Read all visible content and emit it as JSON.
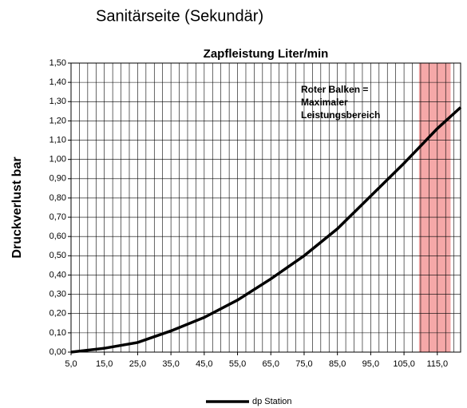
{
  "chart_data": {
    "type": "line",
    "header": "Sanitärseite (Sekundär)",
    "title": "Zapfleistung Liter/min",
    "ylabel": "Druckverlust bar",
    "annotation": [
      "Roter Balken =",
      "Maximaler",
      "Leistungsbereich"
    ],
    "highlight": {
      "from": 109.5,
      "to": 119,
      "color": "#f28b8b"
    },
    "x": [
      5,
      15,
      25,
      35,
      45,
      55,
      65,
      75,
      85,
      95,
      105,
      115,
      122
    ],
    "series": [
      {
        "name": "dp Station",
        "color": "#000000",
        "values": [
          0.0,
          0.02,
          0.05,
          0.11,
          0.18,
          0.27,
          0.38,
          0.5,
          0.64,
          0.81,
          0.98,
          1.16,
          1.27
        ]
      }
    ],
    "xlim": [
      5,
      122
    ],
    "xticks": [
      {
        "value": 5,
        "label": "5,0"
      },
      {
        "value": 15,
        "label": "15,0"
      },
      {
        "value": 25,
        "label": "25,0"
      },
      {
        "value": 35,
        "label": "35,0"
      },
      {
        "value": 45,
        "label": "45,0"
      },
      {
        "value": 55,
        "label": "55,0"
      },
      {
        "value": 65,
        "label": "65,0"
      },
      {
        "value": 75,
        "label": "75,0"
      },
      {
        "value": 85,
        "label": "85,0"
      },
      {
        "value": 95,
        "label": "95,0"
      },
      {
        "value": 105,
        "label": "105,0"
      },
      {
        "value": 115,
        "label": "115,0"
      }
    ],
    "xgrid_step": 2.5,
    "ylim": [
      0,
      1.5
    ],
    "yticks": [
      {
        "value": 0,
        "label": "0,00"
      },
      {
        "value": 0.1,
        "label": "0,10"
      },
      {
        "value": 0.2,
        "label": "0,20"
      },
      {
        "value": 0.3,
        "label": "0,30"
      },
      {
        "value": 0.4,
        "label": "0,40"
      },
      {
        "value": 0.5,
        "label": "0,50"
      },
      {
        "value": 0.6,
        "label": "0,60"
      },
      {
        "value": 0.7,
        "label": "0,70"
      },
      {
        "value": 0.8,
        "label": "0,80"
      },
      {
        "value": 0.9,
        "label": "0,90"
      },
      {
        "value": 1.0,
        "label": "1,00"
      },
      {
        "value": 1.1,
        "label": "1,10"
      },
      {
        "value": 1.2,
        "label": "1,20"
      },
      {
        "value": 1.3,
        "label": "1,30"
      },
      {
        "value": 1.4,
        "label": "1,40"
      },
      {
        "value": 1.5,
        "label": "1,50"
      }
    ],
    "grid": true
  }
}
